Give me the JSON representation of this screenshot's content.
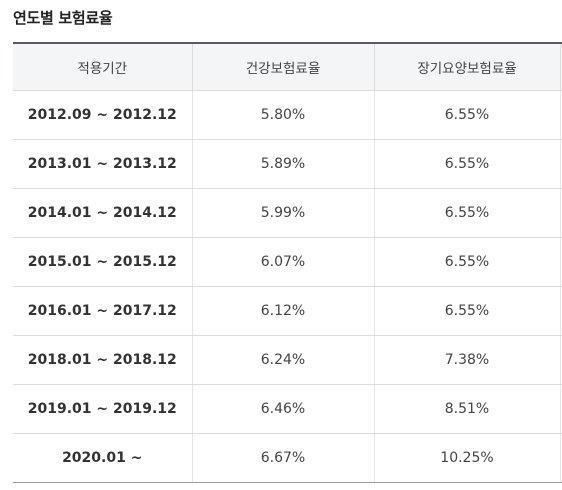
{
  "title": "연도별 보험료율",
  "table": {
    "headers": [
      "적용기간",
      "건강보험료율",
      "장기요양보험료율",
      ""
    ],
    "rows": [
      {
        "period": "2012.09 ~ 2012.12",
        "health": "5.80%",
        "ltc": "6.55%"
      },
      {
        "period": "2013.01 ~ 2013.12",
        "health": "5.89%",
        "ltc": "6.55%"
      },
      {
        "period": "2014.01 ~ 2014.12",
        "health": "5.99%",
        "ltc": "6.55%"
      },
      {
        "period": "2015.01 ~ 2015.12",
        "health": "6.07%",
        "ltc": "6.55%"
      },
      {
        "period": "2016.01 ~ 2017.12",
        "health": "6.12%",
        "ltc": "6.55%"
      },
      {
        "period": "2018.01 ~ 2018.12",
        "health": "6.24%",
        "ltc": "7.38%"
      },
      {
        "period": "2019.01 ~ 2019.12",
        "health": "6.46%",
        "ltc": "8.51%"
      },
      {
        "period": "2020.01 ~",
        "health": "6.67%",
        "ltc": "10.25%"
      }
    ]
  }
}
